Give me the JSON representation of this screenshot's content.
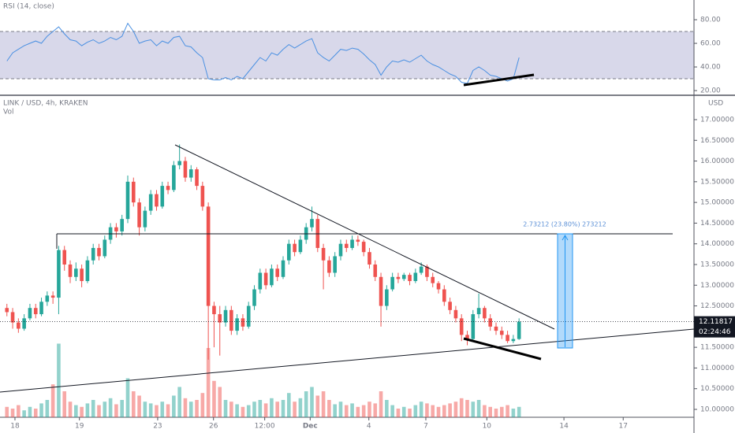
{
  "chart_data": [
    {
      "type": "line",
      "title": "RSI (14, close)",
      "series": [
        {
          "color": "#4a90e2",
          "values": [
            45,
            52,
            55,
            58,
            60,
            62,
            60,
            66,
            70,
            74,
            68,
            63,
            62,
            58,
            61,
            63,
            60,
            62,
            65,
            63,
            66,
            77,
            70,
            60,
            62,
            63,
            58,
            62,
            60,
            65,
            66,
            58,
            57,
            52,
            48,
            30,
            29,
            29,
            31,
            29,
            32,
            30,
            36,
            42,
            48,
            45,
            52,
            50,
            55,
            59,
            56,
            59,
            62,
            64,
            52,
            48,
            45,
            50,
            55,
            54,
            56,
            55,
            51,
            46,
            42,
            33,
            40,
            45,
            44,
            46,
            44,
            47,
            50,
            45,
            42,
            40,
            37,
            34,
            32,
            27,
            26,
            37,
            40,
            37,
            33,
            32,
            30,
            28,
            30,
            48
          ]
        }
      ],
      "band": [
        30,
        70
      ],
      "band_color": "#d8d8ea",
      "xlim": [
        -1.2,
        119.4
      ],
      "ylim": [
        16.7,
        96.7
      ],
      "yticks": [
        {
          "value": 20,
          "label": "20.00"
        },
        {
          "value": 40,
          "label": "40.00"
        },
        {
          "value": 60,
          "label": "60.00"
        },
        {
          "value": 80,
          "label": "80.00"
        }
      ]
    },
    {
      "type": "candlestick",
      "title": "LINK / USD, 4h, KRAKEN",
      "volume_title": "Vol",
      "axis_unit": "USD",
      "up_color": "#26a69a",
      "down_color": "#ef5350",
      "open": [
        12.45,
        12.35,
        12.1,
        11.95,
        12.2,
        12.45,
        12.3,
        12.6,
        12.75,
        12.7,
        13.85,
        13.5,
        13.2,
        13.4,
        13.1,
        13.6,
        13.9,
        13.7,
        14.1,
        14.4,
        14.3,
        14.6,
        15.5,
        15.0,
        14.4,
        14.8,
        15.2,
        14.9,
        15.4,
        15.3,
        15.9,
        16.0,
        15.6,
        15.8,
        15.4,
        14.9,
        12.5,
        12.3,
        12.1,
        12.4,
        11.9,
        12.2,
        12.0,
        12.5,
        12.9,
        13.3,
        13.0,
        13.4,
        13.2,
        13.6,
        14.0,
        13.8,
        14.1,
        14.4,
        14.6,
        13.9,
        13.6,
        13.3,
        13.7,
        14.0,
        13.9,
        14.1,
        14.05,
        13.8,
        13.5,
        13.2,
        12.5,
        12.9,
        13.2,
        13.15,
        13.25,
        13.1,
        13.3,
        13.45,
        13.2,
        13.05,
        12.9,
        12.6,
        12.4,
        12.2,
        11.8,
        11.7,
        12.3,
        12.45,
        12.2,
        12.0,
        11.9,
        11.8,
        11.65,
        11.7
      ],
      "high": [
        12.55,
        12.45,
        12.2,
        12.3,
        12.55,
        12.55,
        12.7,
        12.85,
        12.85,
        13.95,
        13.95,
        13.6,
        13.55,
        13.5,
        13.7,
        14.0,
        14.0,
        14.2,
        14.5,
        14.5,
        14.7,
        15.65,
        15.6,
        15.1,
        14.9,
        15.3,
        15.3,
        15.5,
        15.5,
        16.0,
        16.4,
        16.1,
        15.9,
        15.85,
        15.5,
        15.0,
        12.6,
        12.5,
        12.5,
        12.5,
        12.3,
        12.3,
        12.6,
        13.0,
        13.4,
        13.4,
        13.5,
        13.5,
        13.7,
        14.1,
        14.1,
        14.2,
        14.5,
        14.9,
        14.7,
        14.0,
        13.7,
        13.8,
        14.1,
        14.1,
        14.2,
        14.2,
        14.1,
        13.9,
        13.6,
        13.3,
        13.0,
        13.3,
        13.3,
        13.3,
        13.3,
        13.4,
        13.55,
        13.5,
        13.3,
        13.1,
        13.0,
        12.7,
        12.5,
        12.3,
        11.9,
        12.4,
        12.8,
        12.5,
        12.3,
        12.1,
        12.0,
        11.9,
        11.8,
        12.2
      ],
      "low": [
        12.25,
        11.95,
        11.85,
        11.9,
        12.15,
        12.2,
        12.25,
        12.5,
        12.55,
        12.3,
        13.35,
        13.05,
        13.1,
        12.95,
        13.05,
        13.5,
        13.6,
        13.65,
        14.0,
        14.15,
        14.2,
        14.5,
        14.9,
        14.2,
        14.3,
        14.7,
        14.8,
        14.85,
        15.2,
        15.25,
        15.8,
        15.5,
        15.5,
        15.3,
        14.8,
        11.2,
        11.5,
        11.3,
        12.0,
        11.8,
        11.8,
        11.9,
        11.95,
        12.4,
        12.8,
        12.9,
        12.95,
        13.1,
        13.15,
        13.5,
        13.7,
        13.75,
        14.0,
        14.3,
        13.8,
        12.9,
        13.2,
        13.2,
        13.6,
        13.8,
        13.85,
        13.95,
        13.7,
        13.4,
        13.1,
        12.0,
        12.4,
        12.85,
        13.05,
        13.1,
        13.0,
        13.05,
        13.25,
        13.1,
        12.95,
        12.8,
        12.5,
        12.3,
        12.1,
        11.65,
        11.55,
        11.65,
        12.2,
        12.1,
        11.9,
        11.8,
        11.7,
        11.6,
        11.6,
        11.68
      ],
      "close": [
        12.35,
        12.1,
        11.95,
        12.2,
        12.45,
        12.3,
        12.6,
        12.75,
        12.7,
        13.85,
        13.5,
        13.2,
        13.4,
        13.1,
        13.6,
        13.9,
        13.7,
        14.1,
        14.4,
        14.3,
        14.6,
        15.5,
        15.0,
        14.4,
        14.8,
        15.2,
        14.9,
        15.4,
        15.3,
        15.9,
        16.0,
        15.6,
        15.8,
        15.4,
        14.9,
        12.5,
        12.3,
        12.1,
        12.4,
        11.9,
        12.2,
        12.0,
        12.5,
        12.9,
        13.3,
        13.0,
        13.4,
        13.2,
        13.6,
        14.0,
        13.8,
        14.1,
        14.4,
        14.6,
        13.9,
        13.6,
        13.3,
        13.7,
        14.0,
        13.9,
        14.1,
        14.05,
        13.8,
        13.5,
        13.2,
        12.5,
        12.9,
        13.2,
        13.15,
        13.25,
        13.1,
        13.3,
        13.45,
        13.2,
        13.05,
        12.9,
        12.6,
        12.4,
        12.2,
        11.8,
        11.7,
        12.3,
        12.45,
        12.2,
        12.0,
        11.9,
        11.8,
        11.65,
        11.7,
        12.12
      ],
      "volume": [
        12,
        10,
        14,
        8,
        12,
        10,
        16,
        20,
        38,
        85,
        30,
        18,
        14,
        12,
        16,
        20,
        14,
        18,
        22,
        15,
        20,
        45,
        30,
        25,
        18,
        16,
        14,
        18,
        15,
        25,
        35,
        22,
        18,
        20,
        28,
        80,
        42,
        35,
        20,
        18,
        15,
        12,
        14,
        18,
        20,
        16,
        22,
        18,
        20,
        28,
        18,
        22,
        30,
        35,
        25,
        30,
        20,
        15,
        18,
        14,
        16,
        12,
        14,
        18,
        16,
        30,
        20,
        14,
        10,
        12,
        10,
        14,
        18,
        16,
        14,
        12,
        14,
        16,
        18,
        22,
        20,
        18,
        20,
        14,
        12,
        10,
        12,
        14,
        10,
        12
      ],
      "volume_ylim": [
        0,
        100
      ],
      "xlim": [
        -1.2,
        119.4
      ],
      "xticks": [
        {
          "value": 1.4,
          "label": "18"
        },
        {
          "value": 12.6,
          "label": "19"
        },
        {
          "value": 26.2,
          "label": "23"
        },
        {
          "value": 35.9,
          "label": "26"
        },
        {
          "value": 44.8,
          "label": "12:00"
        },
        {
          "value": 52.7,
          "label": "Dec"
        },
        {
          "value": 62.9,
          "label": "4"
        },
        {
          "value": 72.8,
          "label": "7"
        },
        {
          "value": 83.4,
          "label": "10"
        },
        {
          "value": 96.8,
          "label": "14"
        },
        {
          "value": 107.1,
          "label": "17"
        }
      ],
      "ylim": [
        9.81,
        17.57
      ],
      "yticks": [
        {
          "value": 10,
          "label": "10.00000"
        },
        {
          "value": 10.5,
          "label": "10.50000"
        },
        {
          "value": 11,
          "label": "11.00000"
        },
        {
          "value": 11.5,
          "label": "11.50000"
        },
        {
          "value": 12,
          "label": "12.00000"
        },
        {
          "value": 12.5,
          "label": "12.50000"
        },
        {
          "value": 13,
          "label": "13.00000"
        },
        {
          "value": 13.5,
          "label": "13.50000"
        },
        {
          "value": 14,
          "label": "14.00000"
        },
        {
          "value": 14.5,
          "label": "14.50000"
        },
        {
          "value": 15,
          "label": "15.00000"
        },
        {
          "value": 15.5,
          "label": "15.50000"
        },
        {
          "value": 16,
          "label": "16.00000"
        },
        {
          "value": 16.5,
          "label": "16.50000"
        },
        {
          "value": 17,
          "label": "17.00000"
        }
      ],
      "last_price": 12.11817,
      "countdown": "02:24:46",
      "measure_label": "2.73212 (23.80%) 273212"
    }
  ]
}
